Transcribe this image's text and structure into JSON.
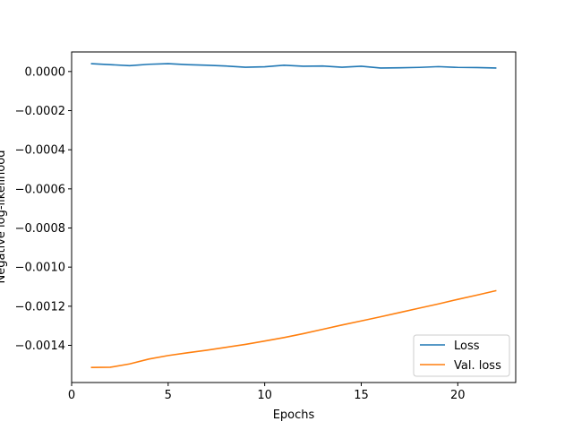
{
  "chart_data": {
    "type": "line",
    "title": "",
    "xlabel": "Epochs",
    "ylabel": "Negative log-likelihood",
    "xlim": [
      0,
      23
    ],
    "ylim": [
      -0.00159,
      0.0001
    ],
    "x_ticks": [
      0,
      5,
      10,
      15,
      20
    ],
    "y_ticks": [
      0.0,
      -0.0002,
      -0.0004,
      -0.0006,
      -0.0008,
      -0.001,
      -0.0012,
      -0.0014
    ],
    "y_tick_labels": [
      "0.0000",
      "−0.0002",
      "−0.0004",
      "−0.0006",
      "−0.0008",
      "−0.0010",
      "−0.0012",
      "−0.0014"
    ],
    "x_tick_labels": [
      "0",
      "5",
      "10",
      "15",
      "20"
    ],
    "grid": false,
    "legend_position": "bottom-right",
    "x": [
      1,
      2,
      3,
      4,
      5,
      6,
      7,
      8,
      9,
      10,
      11,
      12,
      13,
      14,
      15,
      16,
      17,
      18,
      19,
      20,
      21,
      22
    ],
    "series": [
      {
        "name": "Loss",
        "color": "#1f77b4",
        "values": [
          4e-05,
          3.5e-05,
          3e-05,
          3.7e-05,
          4e-05,
          3.5e-05,
          3.2e-05,
          2.8e-05,
          2.2e-05,
          2.4e-05,
          3.2e-05,
          2.7e-05,
          2.8e-05,
          2.2e-05,
          2.7e-05,
          1.8e-05,
          1.9e-05,
          2.1e-05,
          2.5e-05,
          2.1e-05,
          2e-05,
          1.8e-05
        ]
      },
      {
        "name": "Val. loss",
        "color": "#ff7f0e",
        "values": [
          -0.001513,
          -0.001512,
          -0.001495,
          -0.00147,
          -0.001452,
          -0.001438,
          -0.001425,
          -0.00141,
          -0.001395,
          -0.001378,
          -0.00136,
          -0.00134,
          -0.001318,
          -0.001296,
          -0.001275,
          -0.001254,
          -0.001232,
          -0.00121,
          -0.001188,
          -0.001165,
          -0.001143,
          -0.00112
        ]
      }
    ]
  }
}
